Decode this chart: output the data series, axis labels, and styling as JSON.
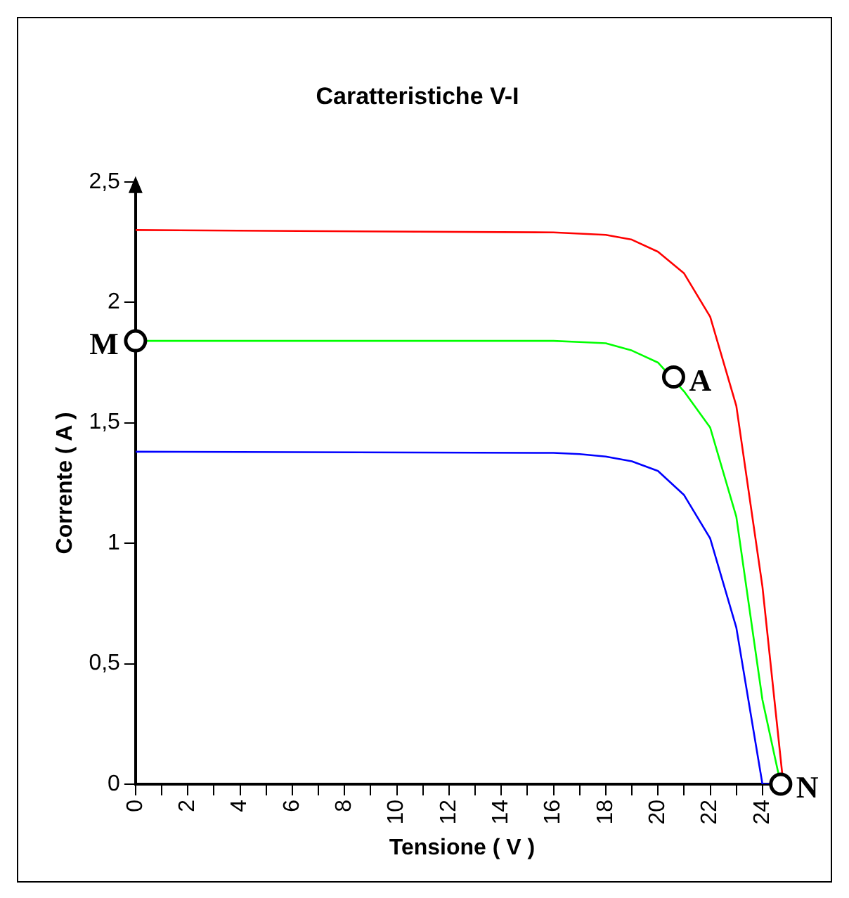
{
  "chart_data": {
    "type": "line",
    "title": "Caratteristiche V-I",
    "xlabel": "Tensione ( V )",
    "ylabel": "Corrente ( A )",
    "series": [
      {
        "color": "#ff0000",
        "x": [
          0,
          16,
          17,
          18,
          19,
          20,
          21,
          22,
          23,
          24,
          24.8
        ],
        "values": [
          2.3,
          2.29,
          2.285,
          2.28,
          2.26,
          2.21,
          2.12,
          1.94,
          1.57,
          0.82,
          0
        ]
      },
      {
        "color": "#00ff00",
        "x": [
          0,
          16,
          17,
          18,
          19,
          20,
          21,
          22,
          23,
          24,
          24.7
        ],
        "values": [
          1.84,
          1.84,
          1.835,
          1.83,
          1.8,
          1.75,
          1.63,
          1.48,
          1.11,
          0.35,
          0
        ]
      },
      {
        "color": "#0000ff",
        "x": [
          0,
          16,
          17,
          18,
          19,
          20,
          21,
          22,
          23,
          24,
          24.3
        ],
        "values": [
          1.38,
          1.375,
          1.37,
          1.36,
          1.34,
          1.3,
          1.2,
          1.02,
          0.65,
          0,
          0
        ]
      }
    ],
    "annotations": [
      {
        "text": "M",
        "x": 0,
        "y": 1.84
      },
      {
        "text": "A",
        "x": 20.6,
        "y": 1.69
      },
      {
        "text": "N",
        "x": 24.7,
        "y": 0
      }
    ],
    "xlim": [
      0,
      25
    ],
    "xticks": [
      0,
      {
        "value": 1,
        "label": null
      },
      2,
      {
        "value": 3,
        "label": null
      },
      4,
      {
        "value": 5,
        "label": null
      },
      6,
      {
        "value": 7,
        "label": null
      },
      8,
      {
        "value": 9,
        "label": null
      },
      10,
      {
        "value": 11,
        "label": null
      },
      12,
      {
        "value": 13,
        "label": null
      },
      14,
      {
        "value": 15,
        "label": null
      },
      16,
      {
        "value": 17,
        "label": null
      },
      18,
      {
        "value": 19,
        "label": null
      },
      20,
      {
        "value": 21,
        "label": null
      },
      22,
      {
        "value": 23,
        "label": null
      },
      24
    ],
    "ylim": [
      0,
      2.5
    ],
    "yticks": [
      0,
      {
        "value": 0.5,
        "label": "0,5"
      },
      1,
      {
        "value": 1.5,
        "label": "1,5"
      },
      2,
      {
        "value": 2.5,
        "label": "2,5"
      }
    ],
    "grid": false,
    "legend": false,
    "marker": "none",
    "line_style": "solid"
  }
}
